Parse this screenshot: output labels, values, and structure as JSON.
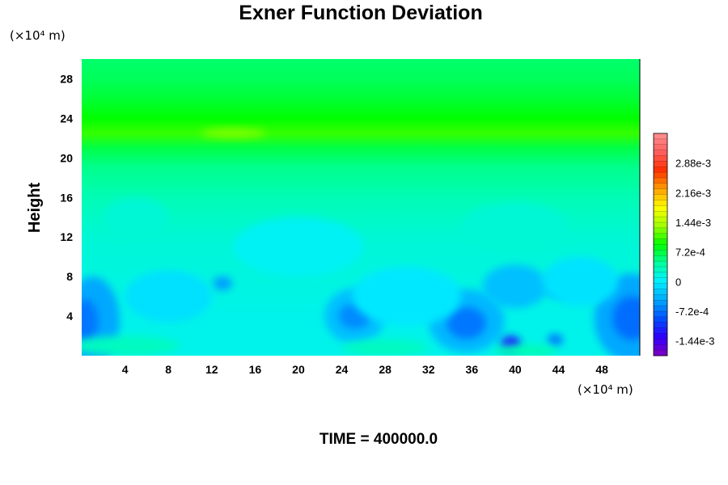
{
  "chart_data": {
    "type": "heatmap",
    "title": "Exner Function Deviation",
    "ylabel": "Height",
    "xlabel": "",
    "x_unit": "(×10⁴ m)",
    "y_unit": "(×10⁴ m)",
    "x_range": [
      0,
      51.5
    ],
    "y_range": [
      0,
      30
    ],
    "x_ticks": [
      4,
      8,
      12,
      16,
      20,
      24,
      28,
      32,
      36,
      40,
      44,
      48
    ],
    "y_ticks": [
      4,
      8,
      12,
      16,
      20,
      24,
      28
    ],
    "footer": "TIME = 400000.0",
    "colorbar": {
      "min": -0.0018,
      "max": 0.0036,
      "ticks": [
        {
          "value": 0.00288,
          "label": "2.88e-3"
        },
        {
          "value": 0.00216,
          "label": "2.16e-3"
        },
        {
          "value": 0.00144,
          "label": "1.44e-3"
        },
        {
          "value": 0.00072,
          "label": "7.2e-4"
        },
        {
          "value": 0,
          "label": "0"
        },
        {
          "value": -0.00072,
          "label": "-7.2e-4"
        },
        {
          "value": -0.00144,
          "label": "-1.44e-3"
        }
      ],
      "stops": [
        "#8000c0",
        "#3000ff",
        "#0050ff",
        "#00a8ff",
        "#00f0ff",
        "#00ffa0",
        "#00ff00",
        "#a0ff00",
        "#ffff00",
        "#ffa000",
        "#ff3000",
        "#ff6060",
        "#ff9090"
      ]
    },
    "field_profile": [
      {
        "y": 0,
        "value": 0.0001
      },
      {
        "y": 4,
        "value": 0.0001
      },
      {
        "y": 8,
        "value": 0.00015
      },
      {
        "y": 12,
        "value": 0.0002
      },
      {
        "y": 16,
        "value": 0.00035
      },
      {
        "y": 19,
        "value": 0.0005
      },
      {
        "y": 21,
        "value": 0.0007
      },
      {
        "y": 22.5,
        "value": 0.00105
      },
      {
        "y": 24,
        "value": 0.0009
      },
      {
        "y": 26,
        "value": 0.00075
      },
      {
        "y": 28,
        "value": 0.00065
      },
      {
        "y": 30,
        "value": 0.0006
      }
    ],
    "anomalies": [
      {
        "x": 1,
        "y": 3.5,
        "rx": 2.5,
        "ry": 4.5,
        "value": -0.00045
      },
      {
        "x": 0.3,
        "y": 3.5,
        "rx": 1.2,
        "ry": 2.2,
        "value": -0.0007
      },
      {
        "x": 50.8,
        "y": 3.8,
        "rx": 3.5,
        "ry": 4.5,
        "value": -0.00045
      },
      {
        "x": 50.8,
        "y": 3.8,
        "rx": 1.8,
        "ry": 2.2,
        "value": -0.00075
      },
      {
        "x": 35.5,
        "y": 3.5,
        "rx": 3.5,
        "ry": 3.2,
        "value": -0.00035
      },
      {
        "x": 35.5,
        "y": 3.3,
        "rx": 1.8,
        "ry": 1.6,
        "value": -0.0007
      },
      {
        "x": 25.2,
        "y": 4.0,
        "rx": 2.8,
        "ry": 2.8,
        "value": -0.0003
      },
      {
        "x": 25.2,
        "y": 4.0,
        "rx": 1.5,
        "ry": 1.3,
        "value": -0.0006
      },
      {
        "x": 40,
        "y": 7.0,
        "rx": 3.0,
        "ry": 2.2,
        "value": -0.0003
      },
      {
        "x": 44,
        "y": 7.0,
        "rx": 1.3,
        "ry": 1.1,
        "value": -0.0005
      },
      {
        "x": 39.6,
        "y": 1.2,
        "rx": 0.9,
        "ry": 0.8,
        "value": -0.0012
      },
      {
        "x": 43.7,
        "y": 1.6,
        "rx": 0.7,
        "ry": 0.6,
        "value": -0.0007
      },
      {
        "x": 13,
        "y": 7.3,
        "rx": 0.9,
        "ry": 0.7,
        "value": -0.0005
      },
      {
        "x": 8,
        "y": 6.0,
        "rx": 4.0,
        "ry": 2.6,
        "value": -0.0001
      },
      {
        "x": 30,
        "y": 6.0,
        "rx": 5.0,
        "ry": 3.0,
        "value": -5e-05
      },
      {
        "x": 46,
        "y": 7.5,
        "rx": 3.5,
        "ry": 2.5,
        "value": -8e-05
      },
      {
        "x": 20,
        "y": 11,
        "rx": 6.0,
        "ry": 3.0,
        "value": 5e-05
      },
      {
        "x": 40,
        "y": 13,
        "rx": 5.0,
        "ry": 2.5,
        "value": 0.0002
      },
      {
        "x": 5,
        "y": 14,
        "rx": 3.0,
        "ry": 2.0,
        "value": 0.0002
      },
      {
        "x": 14,
        "y": 22.5,
        "rx": 3.0,
        "ry": 0.5,
        "value": 0.00125
      },
      {
        "x": 4,
        "y": 1.0,
        "rx": 5.0,
        "ry": 1.0,
        "value": 0.0003
      },
      {
        "x": 28,
        "y": 0.8,
        "rx": 4.0,
        "ry": 0.8,
        "value": 0.0003
      },
      {
        "x": 41,
        "y": 0.5,
        "rx": 3.0,
        "ry": 0.6,
        "value": 0.00035
      }
    ]
  }
}
